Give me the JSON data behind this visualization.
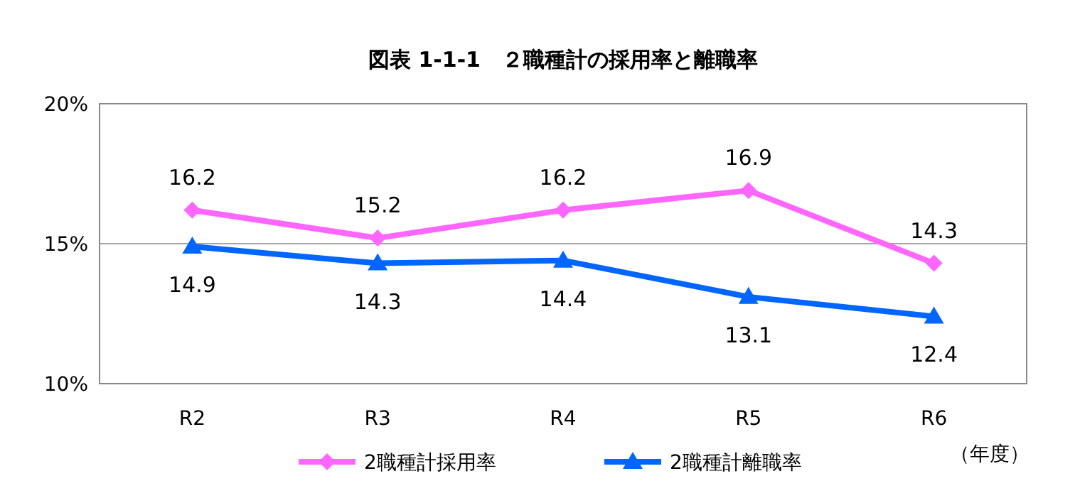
{
  "chart_data": {
    "type": "line",
    "title": "図表 1-1-1　２職種計の採用率と離職率",
    "categories": [
      "R2",
      "R3",
      "R4",
      "R5",
      "R6"
    ],
    "series": [
      {
        "name": "2職種計採用率",
        "color": "#ff66ff",
        "marker": "diamond",
        "values": [
          16.2,
          15.2,
          16.2,
          16.9,
          14.3
        ]
      },
      {
        "name": "2職種計離職率",
        "color": "#0066ff",
        "marker": "triangle",
        "values": [
          14.9,
          14.3,
          14.4,
          13.1,
          12.4
        ]
      }
    ],
    "ylim": [
      10,
      20
    ],
    "yticks": [
      {
        "value": 10,
        "label": "10%"
      },
      {
        "value": 15,
        "label": "15%"
      },
      {
        "value": 20,
        "label": "20%"
      }
    ],
    "xlabel": "（年度）",
    "grid": "y",
    "legend": "bottom",
    "data_labels": true
  }
}
